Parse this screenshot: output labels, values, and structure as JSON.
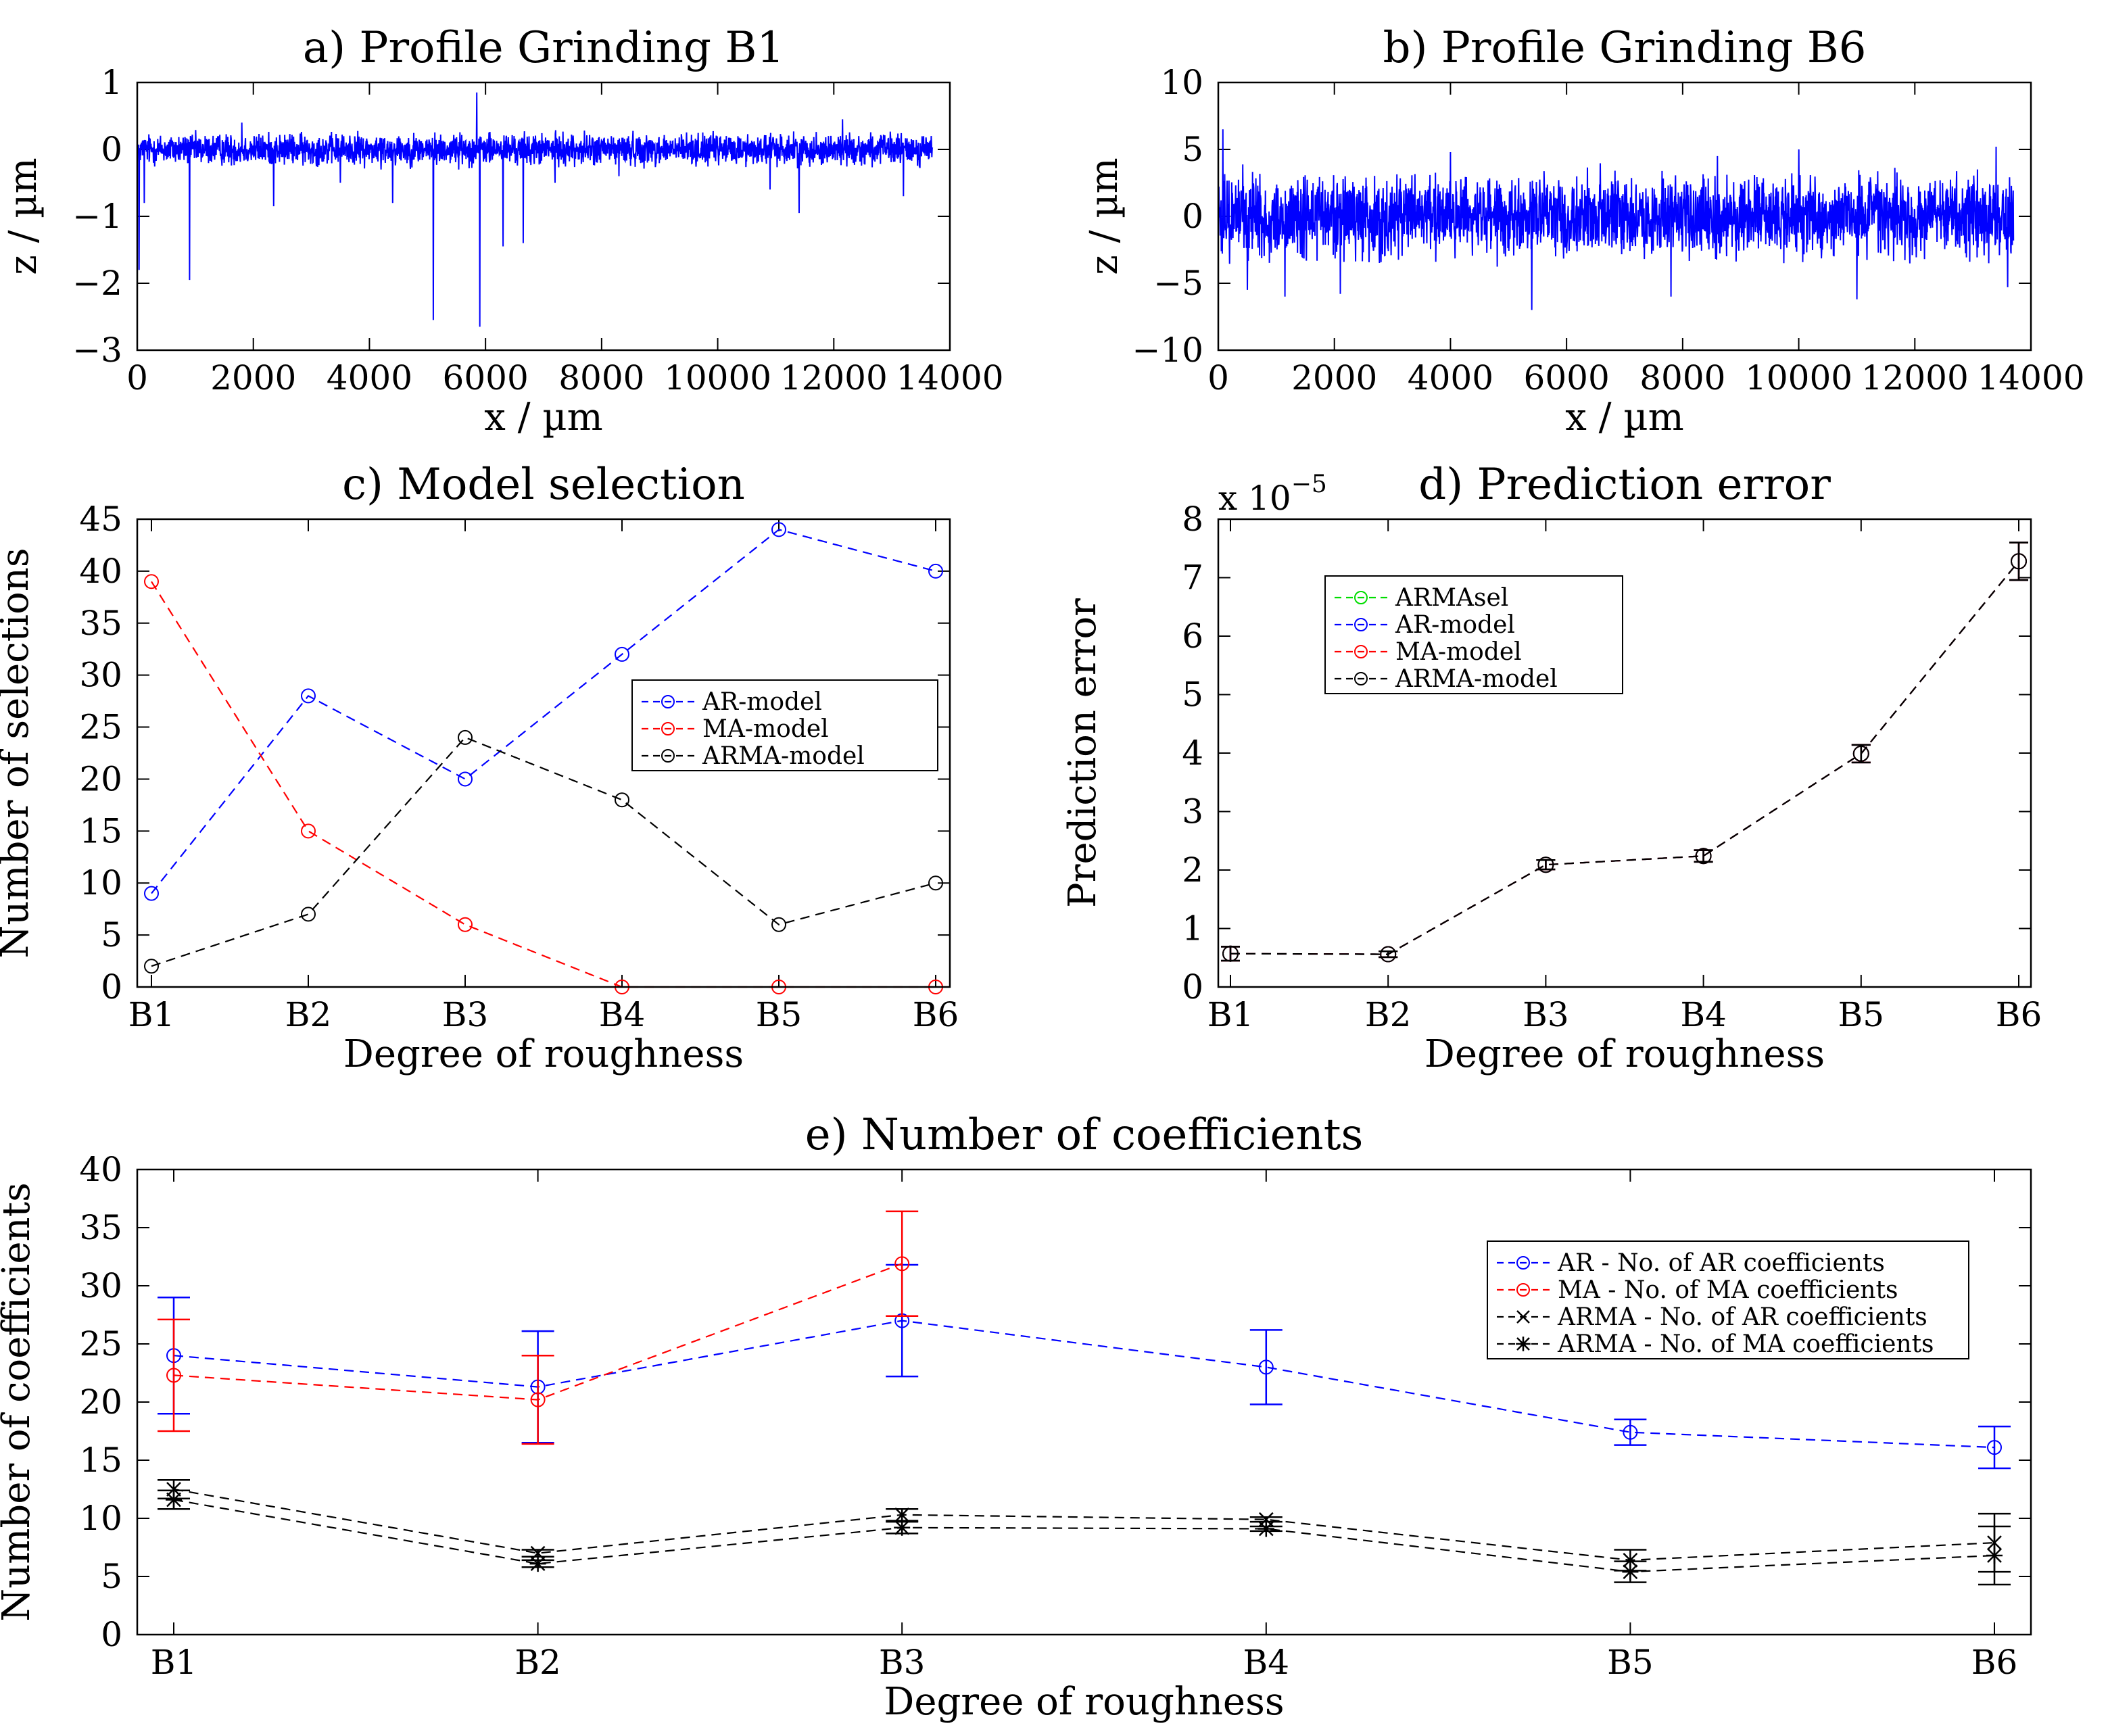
{
  "chart_data": [
    {
      "id": "a",
      "type": "line",
      "title": "a) Profile Grinding B1",
      "xlabel": "x / µm",
      "ylabel": "z / µm",
      "xlim": [
        0,
        14000
      ],
      "ylim": [
        -3,
        1
      ],
      "xticks": [
        0,
        2000,
        4000,
        6000,
        8000,
        10000,
        12000,
        14000
      ],
      "yticks": [
        -3,
        -2,
        -1,
        0,
        1
      ],
      "ytick_labels": [
        "−3",
        "−2",
        "−1",
        "0",
        "1"
      ],
      "color": "#0000ff",
      "profile": {
        "x_end": 13700,
        "noise_amplitude": 0.25,
        "spikes": [
          {
            "x": 30,
            "z": -1.8
          },
          {
            "x": 120,
            "z": -0.8
          },
          {
            "x": 900,
            "z": -1.95
          },
          {
            "x": 1800,
            "z": 0.4
          },
          {
            "x": 2350,
            "z": -0.85
          },
          {
            "x": 3500,
            "z": -0.5
          },
          {
            "x": 4200,
            "z": -0.3
          },
          {
            "x": 4400,
            "z": -0.8
          },
          {
            "x": 5100,
            "z": -2.55
          },
          {
            "x": 5850,
            "z": 0.85
          },
          {
            "x": 5900,
            "z": -2.65
          },
          {
            "x": 6300,
            "z": -1.45
          },
          {
            "x": 6650,
            "z": -1.4
          },
          {
            "x": 7200,
            "z": -0.5
          },
          {
            "x": 8300,
            "z": -0.4
          },
          {
            "x": 10900,
            "z": -0.6
          },
          {
            "x": 11400,
            "z": -0.95
          },
          {
            "x": 12150,
            "z": 0.45
          },
          {
            "x": 13200,
            "z": -0.7
          }
        ]
      }
    },
    {
      "id": "b",
      "type": "line",
      "title": "b) Profile Grinding B6",
      "xlabel": "x / µm",
      "ylabel": "z / µm",
      "xlim": [
        0,
        14000
      ],
      "ylim": [
        -10,
        10
      ],
      "xticks": [
        0,
        2000,
        4000,
        6000,
        8000,
        10000,
        12000,
        14000
      ],
      "yticks": [
        -10,
        -5,
        0,
        5,
        10
      ],
      "ytick_labels": [
        "−10",
        "−5",
        "0",
        "5",
        "10"
      ],
      "color": "#0000ff",
      "profile": {
        "x_end": 13700,
        "noise_amplitude": 3.2,
        "spikes": [
          {
            "x": 80,
            "z": 6.5
          },
          {
            "x": 500,
            "z": -5.5
          },
          {
            "x": 1150,
            "z": -6.0
          },
          {
            "x": 2100,
            "z": -5.8
          },
          {
            "x": 4000,
            "z": 4.8
          },
          {
            "x": 5400,
            "z": -7.0
          },
          {
            "x": 7800,
            "z": -6.0
          },
          {
            "x": 8600,
            "z": 4.5
          },
          {
            "x": 10000,
            "z": 5.0
          },
          {
            "x": 11000,
            "z": -6.2
          },
          {
            "x": 13400,
            "z": 5.2
          },
          {
            "x": 13600,
            "z": -5.3
          }
        ]
      }
    },
    {
      "id": "c",
      "type": "line",
      "title": "c) Model selection",
      "xlabel": "Degree of roughness",
      "ylabel": "Number of selections",
      "categories": [
        "B1",
        "B2",
        "B3",
        "B4",
        "B5",
        "B6"
      ],
      "ylim": [
        0,
        45
      ],
      "yticks": [
        0,
        5,
        10,
        15,
        20,
        25,
        30,
        35,
        40,
        45
      ],
      "legend_position": "center-right",
      "series": [
        {
          "name": "AR-model",
          "color": "#0000ff",
          "marker": "o",
          "values": [
            9,
            28,
            20,
            32,
            44,
            40
          ]
        },
        {
          "name": "MA-model",
          "color": "#ff0000",
          "marker": "o",
          "values": [
            39,
            15,
            6,
            0,
            0,
            0
          ]
        },
        {
          "name": "ARMA-model",
          "color": "#000000",
          "marker": "o",
          "values": [
            2,
            7,
            24,
            18,
            6,
            10
          ]
        }
      ]
    },
    {
      "id": "d",
      "type": "line",
      "title": "d) Prediction error",
      "xlabel": "Degree of roughness",
      "ylabel": "Prediction error",
      "exponent_label": "x 10",
      "exponent": "−5",
      "categories": [
        "B1",
        "B2",
        "B3",
        "B4",
        "B5",
        "B6"
      ],
      "ylim": [
        0,
        8
      ],
      "yticks": [
        0,
        1,
        2,
        3,
        4,
        5,
        6,
        7,
        8
      ],
      "legend_position": "top-left",
      "series": [
        {
          "name": "ARMAsel",
          "color": "#00dd00",
          "marker": "o",
          "values": [
            0.57,
            0.56,
            2.09,
            2.24,
            3.99,
            7.28
          ],
          "errors": [
            0.12,
            0.05,
            0.08,
            0.1,
            0.15,
            0.32
          ]
        },
        {
          "name": "AR-model",
          "color": "#0000ff",
          "marker": "o",
          "values": [
            0.57,
            0.56,
            2.09,
            2.24,
            3.99,
            7.28
          ],
          "errors": [
            0.12,
            0.05,
            0.08,
            0.1,
            0.15,
            0.32
          ]
        },
        {
          "name": "MA-model",
          "color": "#ff0000",
          "marker": "o",
          "values": [
            0.57,
            0.56,
            2.09,
            2.24,
            3.99,
            7.28
          ],
          "errors": [
            0.12,
            0.05,
            0.08,
            0.1,
            0.15,
            0.32
          ]
        },
        {
          "name": "ARMA-model",
          "color": "#000000",
          "marker": "o",
          "values": [
            0.57,
            0.56,
            2.09,
            2.24,
            3.99,
            7.28
          ],
          "errors": [
            0.12,
            0.05,
            0.08,
            0.1,
            0.15,
            0.32
          ]
        }
      ]
    },
    {
      "id": "e",
      "type": "line",
      "title": "e) Number of coefficients",
      "xlabel": "Degree of roughness",
      "ylabel": "Number of coefficients",
      "categories": [
        "B1",
        "B2",
        "B3",
        "B4",
        "B5",
        "B6"
      ],
      "ylim": [
        0,
        40
      ],
      "yticks": [
        0,
        5,
        10,
        15,
        20,
        25,
        30,
        35,
        40
      ],
      "legend_position": "right",
      "series": [
        {
          "name": "AR - No. of AR coefficients",
          "color": "#0000ff",
          "marker": "o",
          "values": [
            24,
            21.3,
            27,
            23,
            17.4,
            16.1
          ],
          "errors": [
            5,
            4.8,
            4.8,
            3.2,
            1.1,
            1.8
          ]
        },
        {
          "name": "MA - No. of MA coefficients",
          "color": "#ff0000",
          "marker": "o",
          "values": [
            22.3,
            20.2,
            31.9,
            null,
            null,
            null
          ],
          "errors": [
            4.8,
            3.8,
            4.5,
            null,
            null,
            null
          ]
        },
        {
          "name": "ARMA - No. of AR coefficients",
          "color": "#000000",
          "marker": "x",
          "values": [
            12.5,
            7,
            10.3,
            9.9,
            6.4,
            7.9
          ],
          "errors": [
            0.8,
            0.3,
            0.5,
            0.2,
            0.9,
            2.5
          ]
        },
        {
          "name": "ARMA - No. of MA coefficients",
          "color": "#000000",
          "marker": "*",
          "values": [
            11.6,
            6.1,
            9.2,
            9.1,
            5.4,
            6.8
          ],
          "errors": [
            0.8,
            0.3,
            0.5,
            0.2,
            0.9,
            2.5
          ]
        }
      ]
    }
  ]
}
